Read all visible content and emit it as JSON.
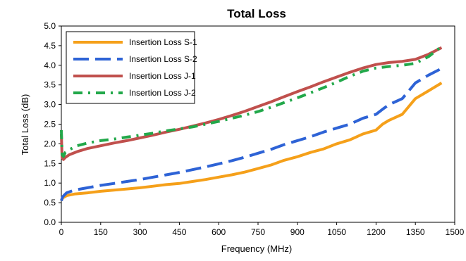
{
  "chart_data": {
    "type": "line",
    "title": "Total Loss",
    "xlabel": "Frequency (MHz)",
    "ylabel": "Total Loss (dB)",
    "xlim": [
      0,
      1500
    ],
    "ylim": [
      0,
      5
    ],
    "xticks": [
      0,
      150,
      300,
      450,
      600,
      750,
      900,
      1050,
      1200,
      1350,
      1500
    ],
    "yticks": [
      0.0,
      0.5,
      1.0,
      1.5,
      2.0,
      2.5,
      3.0,
      3.5,
      4.0,
      4.5,
      5.0
    ],
    "ytick_labels": [
      "0.0",
      "0.5",
      "1.0",
      "1.5",
      "2.0",
      "2.5",
      "3.0",
      "3.5",
      "4.0",
      "4.5",
      "5.0"
    ],
    "grid": "none",
    "legend_position": "top-left",
    "series": [
      {
        "name": "Insertion Loss S-1",
        "color": "#f5a01a",
        "dash": "solid",
        "x": [
          0,
          5,
          20,
          50,
          100,
          150,
          200,
          250,
          300,
          350,
          400,
          450,
          500,
          550,
          600,
          650,
          700,
          750,
          800,
          850,
          900,
          950,
          1000,
          1050,
          1100,
          1150,
          1200,
          1225,
          1250,
          1300,
          1325,
          1350,
          1400,
          1450
        ],
        "y": [
          0.55,
          0.62,
          0.68,
          0.72,
          0.75,
          0.79,
          0.82,
          0.85,
          0.88,
          0.92,
          0.96,
          0.99,
          1.04,
          1.09,
          1.15,
          1.21,
          1.28,
          1.37,
          1.46,
          1.58,
          1.67,
          1.78,
          1.87,
          2.0,
          2.1,
          2.25,
          2.35,
          2.5,
          2.6,
          2.75,
          2.95,
          3.15,
          3.35,
          3.55
        ]
      },
      {
        "name": "Insertion Loss S-2",
        "color": "#2e63d6",
        "dash": "long-dash",
        "x": [
          0,
          5,
          20,
          50,
          100,
          150,
          200,
          250,
          300,
          350,
          400,
          450,
          500,
          550,
          600,
          650,
          700,
          750,
          800,
          850,
          900,
          950,
          1000,
          1050,
          1100,
          1150,
          1200,
          1225,
          1250,
          1300,
          1325,
          1350,
          1400,
          1450
        ],
        "y": [
          0.55,
          0.65,
          0.75,
          0.82,
          0.88,
          0.94,
          0.99,
          1.04,
          1.09,
          1.15,
          1.21,
          1.27,
          1.34,
          1.41,
          1.49,
          1.57,
          1.66,
          1.76,
          1.86,
          1.98,
          2.08,
          2.18,
          2.3,
          2.4,
          2.5,
          2.65,
          2.75,
          2.88,
          3.0,
          3.15,
          3.35,
          3.55,
          3.75,
          3.92
        ]
      },
      {
        "name": "Insertion Loss J-1",
        "color": "#c0504d",
        "dash": "solid",
        "x": [
          0,
          3,
          8,
          15,
          30,
          60,
          100,
          150,
          200,
          250,
          300,
          350,
          400,
          450,
          500,
          550,
          600,
          650,
          700,
          750,
          800,
          850,
          900,
          950,
          1000,
          1050,
          1100,
          1150,
          1200,
          1250,
          1300,
          1350,
          1400,
          1450
        ],
        "y": [
          2.25,
          1.65,
          1.6,
          1.65,
          1.72,
          1.8,
          1.88,
          1.95,
          2.02,
          2.08,
          2.15,
          2.22,
          2.3,
          2.37,
          2.45,
          2.53,
          2.62,
          2.72,
          2.83,
          2.95,
          3.07,
          3.2,
          3.33,
          3.45,
          3.58,
          3.7,
          3.82,
          3.93,
          4.02,
          4.07,
          4.1,
          4.15,
          4.28,
          4.45
        ]
      },
      {
        "name": "Insertion Loss J-2",
        "color": "#22a84a",
        "dash": "dash-dot",
        "x": [
          0,
          3,
          8,
          15,
          30,
          60,
          100,
          150,
          200,
          250,
          300,
          350,
          400,
          450,
          500,
          550,
          600,
          650,
          700,
          750,
          800,
          850,
          900,
          950,
          1000,
          1050,
          1100,
          1150,
          1200,
          1250,
          1300,
          1350,
          1400,
          1450
        ],
        "y": [
          2.35,
          1.72,
          1.68,
          1.78,
          1.85,
          1.95,
          2.02,
          2.08,
          2.12,
          2.17,
          2.22,
          2.27,
          2.33,
          2.38,
          2.43,
          2.5,
          2.57,
          2.65,
          2.73,
          2.82,
          2.93,
          3.05,
          3.17,
          3.3,
          3.43,
          3.57,
          3.72,
          3.85,
          3.93,
          3.97,
          4.0,
          4.05,
          4.22,
          4.48
        ]
      }
    ]
  }
}
